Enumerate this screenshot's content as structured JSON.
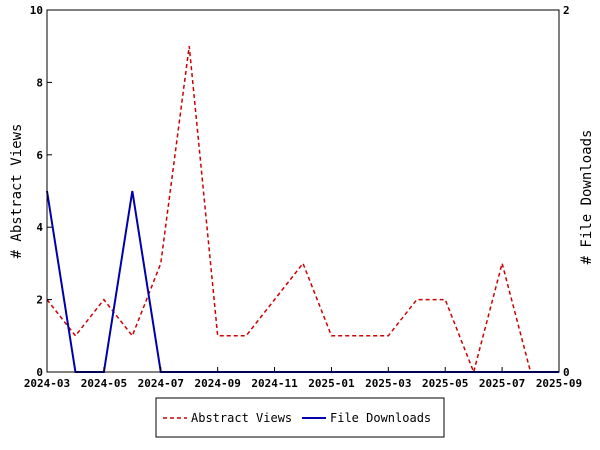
{
  "chart_data": {
    "type": "line",
    "title": "",
    "x": [
      "2024-03",
      "2024-04",
      "2024-05",
      "2024-06",
      "2024-07",
      "2024-08",
      "2024-09",
      "2024-10",
      "2024-11",
      "2024-12",
      "2025-01",
      "2025-02",
      "2025-03",
      "2025-04",
      "2025-05",
      "2025-06",
      "2025-07",
      "2025-08",
      "2025-09"
    ],
    "x_tick_labels": [
      "2024-03",
      "2024-05",
      "2024-07",
      "2024-09",
      "2024-11",
      "2025-01",
      "2025-03",
      "2025-05",
      "2025-07",
      "2025-09"
    ],
    "ylabel_left": "# Abstract Views",
    "ylabel_right": "# File Downloads",
    "ylim_left": [
      0,
      10
    ],
    "ylim_right": [
      0,
      2
    ],
    "yticks_left": [
      "0",
      "2",
      "4",
      "6",
      "8",
      "10"
    ],
    "yticks_right": [
      "0",
      "2"
    ],
    "grid": false,
    "legend_position": "bottom",
    "series": [
      {
        "name": "Abstract Views",
        "axis": "left",
        "color": "#cc0000",
        "dash": true,
        "values": [
          2,
          1,
          2,
          1,
          3,
          9,
          1,
          1,
          2,
          3,
          1,
          1,
          1,
          2,
          2,
          0,
          3,
          0,
          0
        ]
      },
      {
        "name": "File Downloads",
        "axis": "right",
        "color": "#0000aa",
        "dash": false,
        "values": [
          1,
          0,
          0,
          1,
          0,
          0,
          0,
          0,
          0,
          0,
          0,
          0,
          0,
          0,
          0,
          0,
          0,
          0,
          0
        ]
      }
    ]
  }
}
